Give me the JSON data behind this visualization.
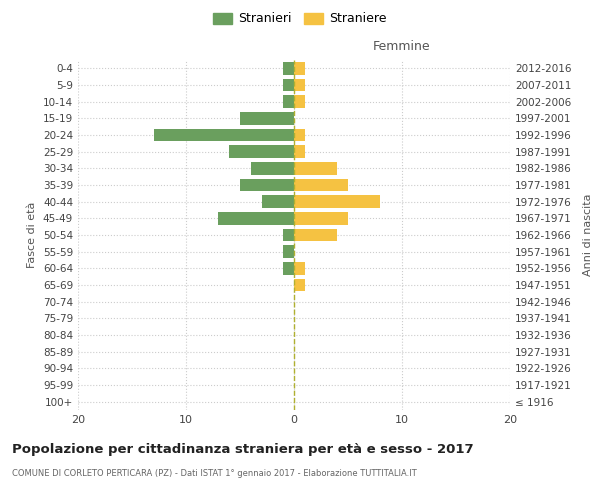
{
  "age_groups": [
    "100+",
    "95-99",
    "90-94",
    "85-89",
    "80-84",
    "75-79",
    "70-74",
    "65-69",
    "60-64",
    "55-59",
    "50-54",
    "45-49",
    "40-44",
    "35-39",
    "30-34",
    "25-29",
    "20-24",
    "15-19",
    "10-14",
    "5-9",
    "0-4"
  ],
  "birth_years": [
    "≤ 1916",
    "1917-1921",
    "1922-1926",
    "1927-1931",
    "1932-1936",
    "1937-1941",
    "1942-1946",
    "1947-1951",
    "1952-1956",
    "1957-1961",
    "1962-1966",
    "1967-1971",
    "1972-1976",
    "1977-1981",
    "1982-1986",
    "1987-1991",
    "1992-1996",
    "1997-2001",
    "2002-2006",
    "2007-2011",
    "2012-2016"
  ],
  "males": [
    0,
    0,
    0,
    0,
    0,
    0,
    0,
    0,
    1,
    1,
    1,
    7,
    3,
    5,
    4,
    6,
    13,
    5,
    1,
    1,
    1
  ],
  "females": [
    0,
    0,
    0,
    0,
    0,
    0,
    0,
    1,
    1,
    0,
    4,
    5,
    8,
    5,
    4,
    1,
    1,
    0,
    1,
    1,
    1
  ],
  "male_color": "#6a9f5e",
  "female_color": "#f5c242",
  "background_color": "#ffffff",
  "grid_color": "#cccccc",
  "dashed_line_color": "#b0b030",
  "xlim": 20,
  "title": "Popolazione per cittadinanza straniera per età e sesso - 2017",
  "subtitle": "COMUNE DI CORLETO PERTICARA (PZ) - Dati ISTAT 1° gennaio 2017 - Elaborazione TUTTITALIA.IT",
  "xlabel_right": "Femmine",
  "ylabel_left": "Fasce di età",
  "ylabel_right": "Anni di nascita",
  "legend_male": "Stranieri",
  "legend_female": "Straniere",
  "bar_height": 0.75
}
